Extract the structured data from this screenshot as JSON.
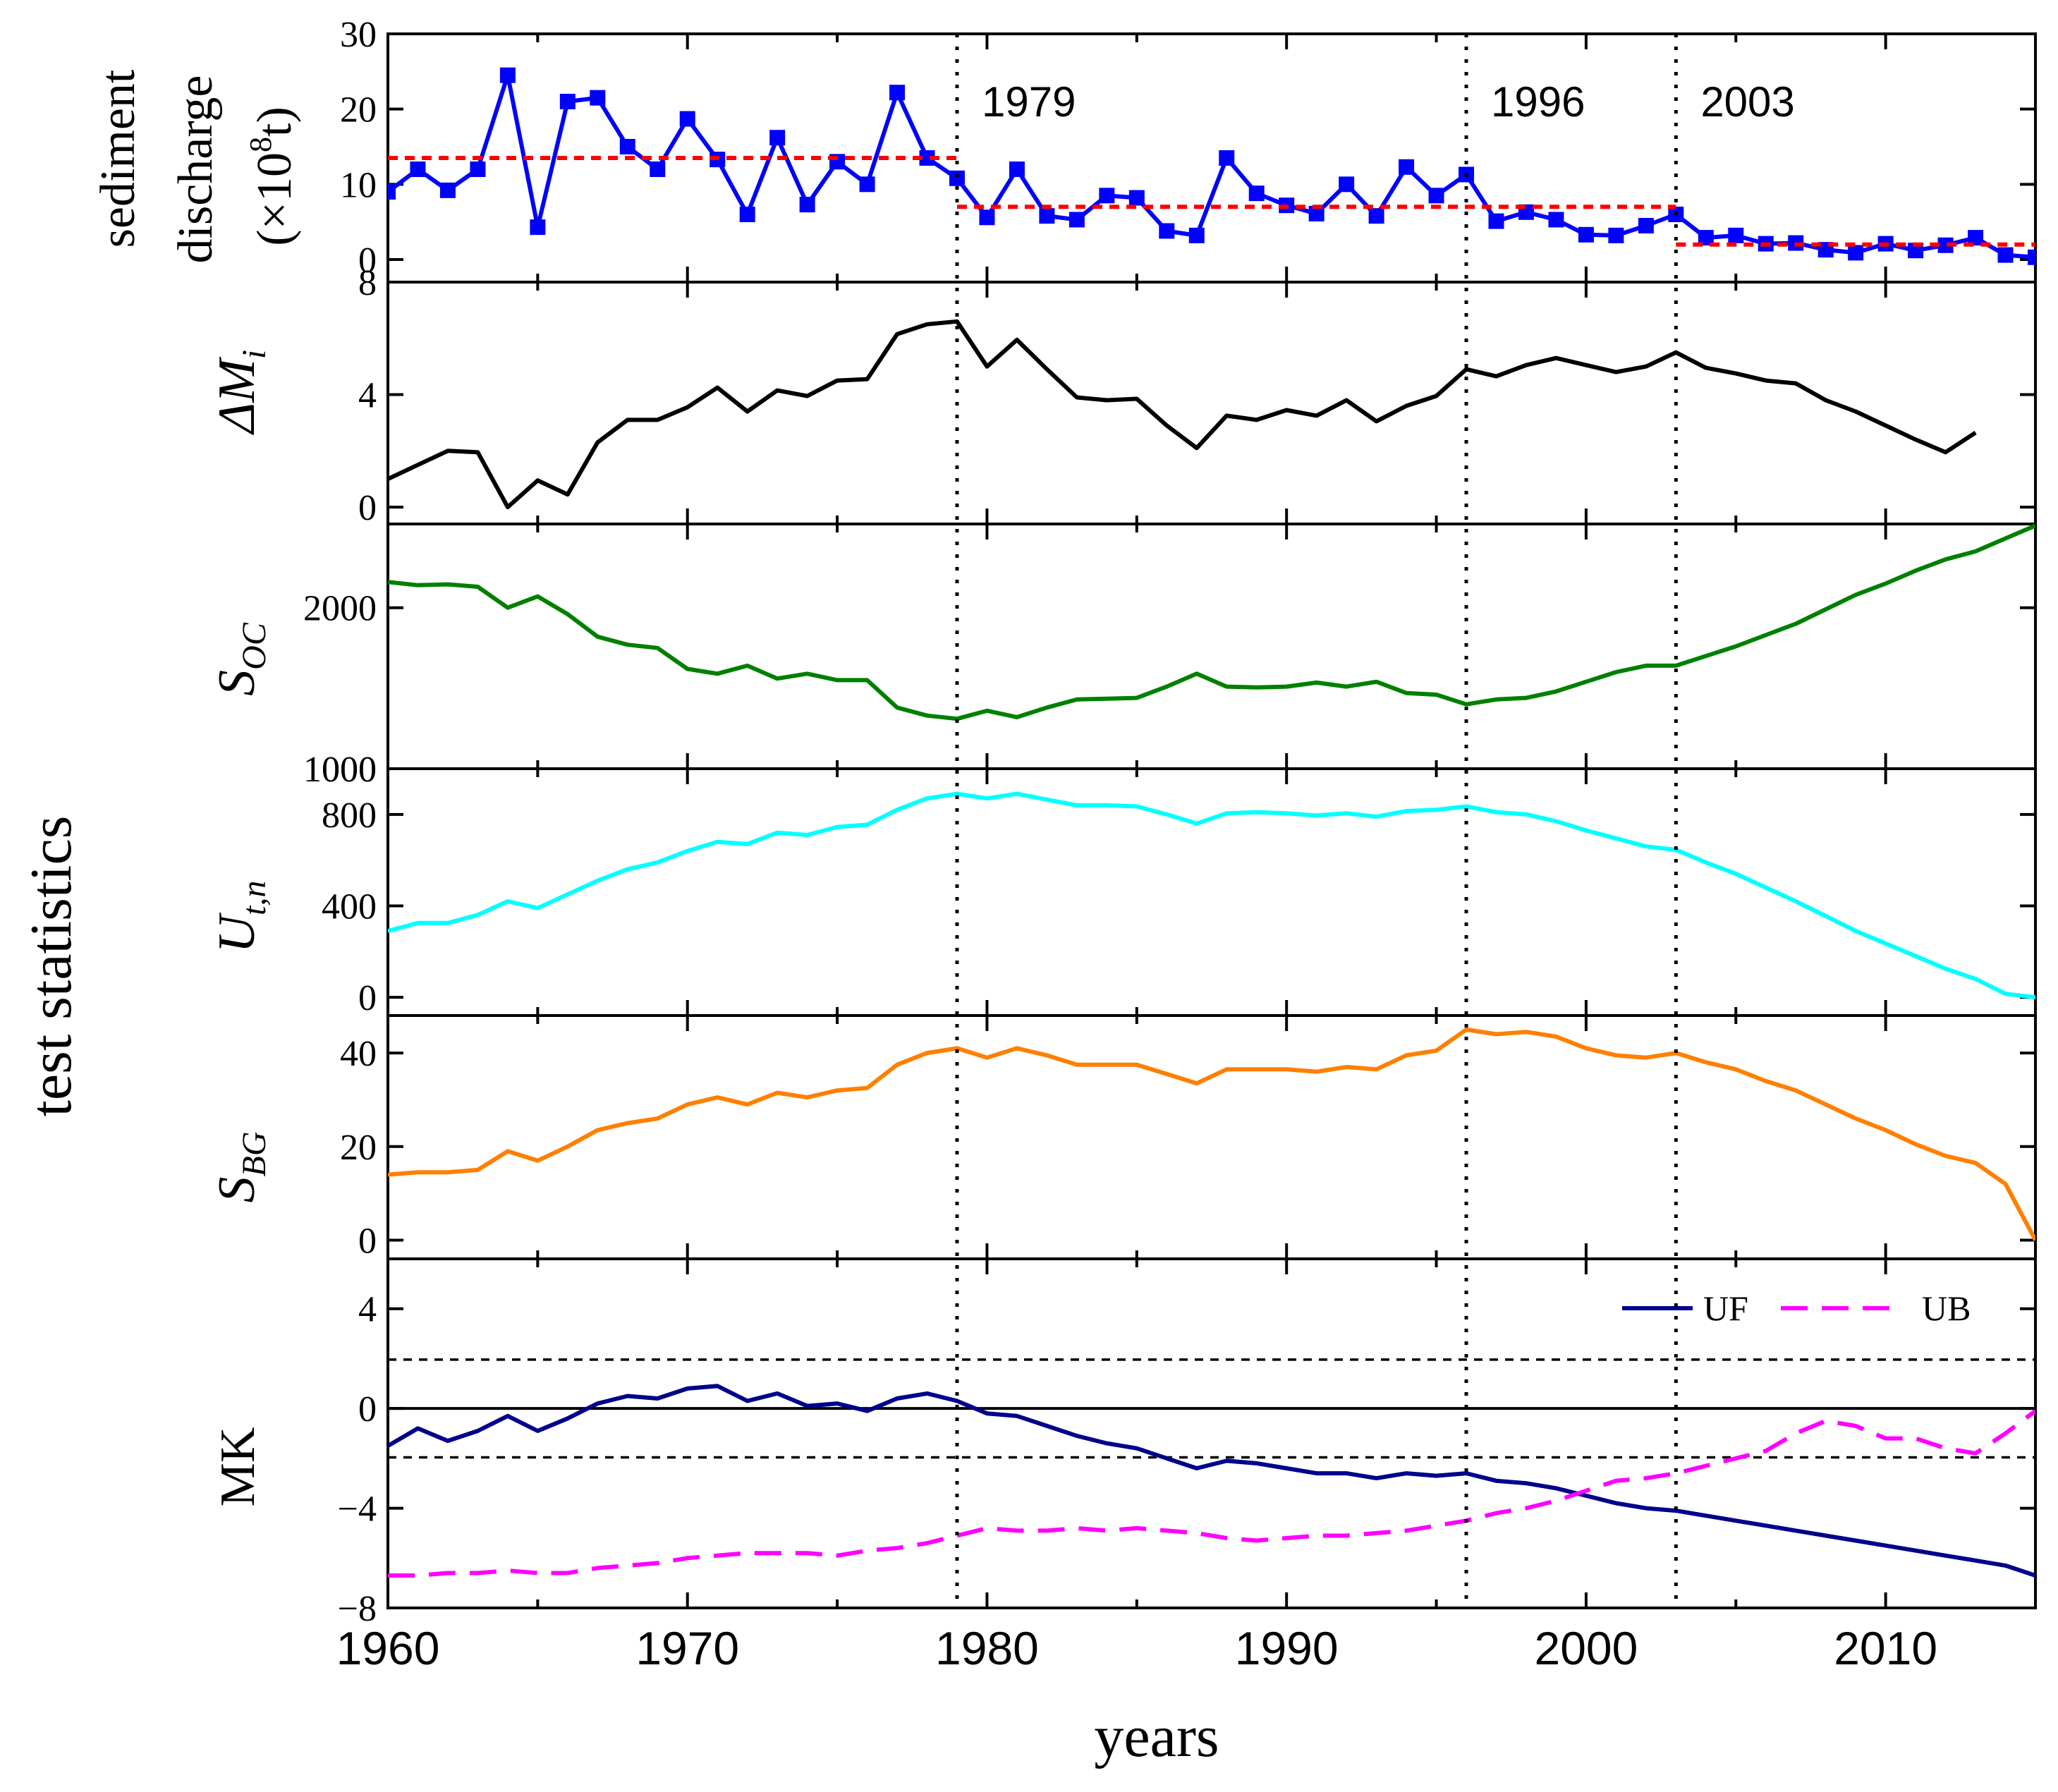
{
  "chart_data": {
    "type": "line",
    "x_label": "years",
    "shared_y_label": "test statistics",
    "x_range": [
      1960,
      2015
    ],
    "x_ticks": [
      1960,
      1970,
      1980,
      1990,
      2000,
      2010
    ],
    "change_points": [
      1979,
      1996,
      2003
    ],
    "change_point_labels": [
      "1979",
      "1996",
      "2003"
    ],
    "panels": [
      {
        "id": "sediment",
        "ylabel_line1": "sediment",
        "ylabel_line2": "discharge",
        "ylabel_line3_prefix": "(×10",
        "ylabel_line3_sup": "8",
        "ylabel_line3_suffix": "t)",
        "ylim": [
          -3,
          30
        ],
        "yticks": [
          0,
          10,
          20,
          30
        ],
        "series": [
          {
            "name": "sediment discharge",
            "color": "#0000ff",
            "marker": "square",
            "x": [
              1960,
              1961,
              1962,
              1963,
              1964,
              1965,
              1966,
              1967,
              1968,
              1969,
              1970,
              1971,
              1972,
              1973,
              1974,
              1975,
              1976,
              1977,
              1978,
              1979,
              1980,
              1981,
              1982,
              1983,
              1984,
              1985,
              1986,
              1987,
              1988,
              1989,
              1990,
              1991,
              1992,
              1993,
              1994,
              1995,
              1996,
              1997,
              1998,
              1999,
              2000,
              2001,
              2002,
              2003,
              2004,
              2005,
              2006,
              2007,
              2008,
              2009,
              2010,
              2011,
              2012,
              2013,
              2014,
              2015
            ],
            "values": [
              9,
              12,
              9.2,
              12,
              24.5,
              4.3,
              21,
              21.5,
              15,
              12,
              18.7,
              13.3,
              6,
              16.2,
              7.3,
              13,
              10,
              22.2,
              13.5,
              10.8,
              5.6,
              12,
              5.8,
              5.3,
              8.5,
              8.2,
              3.8,
              3.2,
              13.5,
              8.8,
              7.2,
              6.1,
              10,
              5.8,
              12.3,
              8.5,
              11.3,
              5.1,
              6.3,
              5.3,
              3.3,
              3.2,
              4.5,
              6,
              2.9,
              3.2,
              2.1,
              2.2,
              1.3,
              0.9,
              2.1,
              1.2,
              1.9,
              2.9,
              0.6,
              0.3
            ]
          },
          {
            "name": "mean 1960-1979",
            "color": "#ff0000",
            "style": "dashed",
            "x": [
              1960,
              1979
            ],
            "values": [
              13.5,
              13.5
            ]
          },
          {
            "name": "mean 1979-2003",
            "color": "#ff0000",
            "style": "dashed",
            "x": [
              1979,
              2003
            ],
            "values": [
              7,
              7
            ]
          },
          {
            "name": "mean 2003-2015",
            "color": "#ff0000",
            "style": "dashed",
            "x": [
              2003,
              2015
            ],
            "values": [
              2,
              2
            ]
          }
        ]
      },
      {
        "id": "deltaM",
        "ylabel_main": "ΔM",
        "ylabel_sub": "i",
        "ylim": [
          -0.6,
          8
        ],
        "yticks": [
          0,
          4,
          8
        ],
        "series": [
          {
            "name": "ΔMi",
            "color": "#000000",
            "x": [
              1960,
              1961,
              1962,
              1963,
              1964,
              1965,
              1966,
              1967,
              1968,
              1969,
              1970,
              1971,
              1972,
              1973,
              1974,
              1975,
              1976,
              1977,
              1978,
              1979,
              1980,
              1981,
              1982,
              1983,
              1984,
              1985,
              1986,
              1987,
              1988,
              1989,
              1990,
              1991,
              1992,
              1993,
              1994,
              1995,
              1996,
              1997,
              1998,
              1999,
              2000,
              2001,
              2002,
              2003,
              2004,
              2005,
              2006,
              2007,
              2008,
              2009,
              2010,
              2011,
              2012,
              2013
            ],
            "values": [
              1.0,
              1.5,
              2.0,
              1.95,
              0,
              0.95,
              0.45,
              2.3,
              3.1,
              3.1,
              3.55,
              4.25,
              3.4,
              4.15,
              3.95,
              4.5,
              4.55,
              6.15,
              6.5,
              6.6,
              5.0,
              5.95,
              4.9,
              3.9,
              3.8,
              3.85,
              2.9,
              2.1,
              3.25,
              3.1,
              3.45,
              3.25,
              3.8,
              3.05,
              3.6,
              3.95,
              4.9,
              4.65,
              5.05,
              5.3,
              5.05,
              4.8,
              5.0,
              5.5,
              4.95,
              4.75,
              4.5,
              4.4,
              3.8,
              3.4,
              2.9,
              2.4,
              1.95,
              2.65
            ]
          }
        ]
      },
      {
        "id": "soc",
        "ylabel_main": "S",
        "ylabel_sub": "OC",
        "ylim": [
          1000,
          2520
        ],
        "yticks": [
          1000,
          2000
        ],
        "series": [
          {
            "name": "SOC",
            "color": "#008000",
            "x": [
              1960,
              1961,
              1962,
              1963,
              1964,
              1965,
              1966,
              1967,
              1968,
              1969,
              1970,
              1971,
              1972,
              1973,
              1974,
              1975,
              1976,
              1977,
              1978,
              1979,
              1980,
              1981,
              1982,
              1983,
              1984,
              1985,
              1986,
              1987,
              1988,
              1989,
              1990,
              1991,
              1992,
              1993,
              1994,
              1995,
              1996,
              1997,
              1998,
              1999,
              2000,
              2001,
              2002,
              2003,
              2004,
              2005,
              2006,
              2007,
              2008,
              2009,
              2010,
              2011,
              2012,
              2013,
              2014,
              2015
            ],
            "values": [
              2160,
              2140,
              2145,
              2130,
              2000,
              2070,
              1960,
              1820,
              1770,
              1750,
              1620,
              1590,
              1640,
              1560,
              1590,
              1550,
              1550,
              1380,
              1330,
              1310,
              1360,
              1320,
              1380,
              1430,
              1435,
              1440,
              1510,
              1590,
              1510,
              1505,
              1510,
              1535,
              1510,
              1540,
              1470,
              1460,
              1400,
              1430,
              1440,
              1480,
              1540,
              1600,
              1640,
              1640,
              1700,
              1760,
              1830,
              1900,
              1990,
              2080,
              2150,
              2230,
              2300,
              2350,
              2430,
              2510
            ]
          }
        ]
      },
      {
        "id": "utn",
        "ylabel_main": "U",
        "ylabel_sub": "t,n",
        "ylim": [
          -80,
          1000
        ],
        "yticks": [
          0,
          400,
          800,
          1000
        ],
        "series": [
          {
            "name": "Ut,n",
            "color": "#00ffff",
            "x": [
              1960,
              1961,
              1962,
              1963,
              1964,
              1965,
              1966,
              1967,
              1968,
              1969,
              1970,
              1971,
              1972,
              1973,
              1974,
              1975,
              1976,
              1977,
              1978,
              1979,
              1980,
              1981,
              1982,
              1983,
              1984,
              1985,
              1986,
              1987,
              1988,
              1989,
              1990,
              1991,
              1992,
              1993,
              1994,
              1995,
              1996,
              1997,
              1998,
              1999,
              2000,
              2001,
              2002,
              2003,
              2004,
              2005,
              2006,
              2007,
              2008,
              2009,
              2010,
              2011,
              2012,
              2013,
              2014,
              2015
            ],
            "values": [
              290,
              325,
              325,
              360,
              420,
              390,
              450,
              510,
              560,
              590,
              640,
              680,
              670,
              720,
              710,
              745,
              755,
              820,
              870,
              890,
              870,
              890,
              865,
              840,
              840,
              835,
              800,
              760,
              805,
              810,
              805,
              795,
              805,
              790,
              815,
              820,
              835,
              810,
              800,
              770,
              730,
              695,
              660,
              645,
              590,
              540,
              480,
              420,
              355,
              290,
              235,
              180,
              125,
              80,
              15,
              0
            ]
          }
        ]
      },
      {
        "id": "sbg",
        "ylabel_main": "S",
        "ylabel_sub": "BG",
        "ylim": [
          -4,
          48
        ],
        "yticks": [
          0,
          20,
          40
        ],
        "series": [
          {
            "name": "SBG",
            "color": "#ff7f00",
            "x": [
              1960,
              1961,
              1962,
              1963,
              1964,
              1965,
              1966,
              1967,
              1968,
              1969,
              1970,
              1971,
              1972,
              1973,
              1974,
              1975,
              1976,
              1977,
              1978,
              1979,
              1980,
              1981,
              1982,
              1983,
              1984,
              1985,
              1986,
              1987,
              1988,
              1989,
              1990,
              1991,
              1992,
              1993,
              1994,
              1995,
              1996,
              1997,
              1998,
              1999,
              2000,
              2001,
              2002,
              2003,
              2004,
              2005,
              2006,
              2007,
              2008,
              2009,
              2010,
              2011,
              2012,
              2013,
              2014,
              2015
            ],
            "values": [
              14,
              14.5,
              14.5,
              15,
              19,
              17,
              20,
              23.5,
              25,
              26,
              29,
              30.5,
              29,
              31.5,
              30.5,
              32,
              32.5,
              37.5,
              40,
              41,
              39,
              41,
              39.5,
              37.5,
              37.5,
              37.5,
              35.5,
              33.5,
              36.5,
              36.5,
              36.5,
              36,
              37,
              36.5,
              39.5,
              40.5,
              45,
              44,
              44.5,
              43.5,
              41,
              39.5,
              39,
              40,
              38,
              36.5,
              34,
              32,
              29,
              26,
              23.5,
              20.5,
              18,
              16.5,
              12,
              0
            ]
          }
        ]
      },
      {
        "id": "mk",
        "ylabel_main": "MK",
        "ylim": [
          -8,
          6
        ],
        "yticks": [
          -8,
          -4,
          0,
          4
        ],
        "reference_lines": [
          1.96,
          0,
          -1.96
        ],
        "legend_position": "top-right",
        "series": [
          {
            "name": "UF",
            "color": "#00008b",
            "style": "solid",
            "x": [
              1960,
              1961,
              1962,
              1963,
              1964,
              1965,
              1966,
              1967,
              1968,
              1969,
              1970,
              1971,
              1972,
              1973,
              1974,
              1975,
              1976,
              1977,
              1978,
              1979,
              1980,
              1981,
              1982,
              1983,
              1984,
              1985,
              1986,
              1987,
              1988,
              1989,
              1990,
              1991,
              1992,
              1993,
              1994,
              1995,
              1996,
              1997,
              1998,
              1999,
              2000,
              2001,
              2002,
              2003,
              2004,
              2005,
              2006,
              2007,
              2008,
              2009,
              2010,
              2011,
              2012,
              2013,
              2014,
              2015
            ],
            "values": [
              -1.5,
              -0.8,
              -1.3,
              -0.9,
              -0.3,
              -0.9,
              -0.4,
              0.2,
              0.5,
              0.4,
              0.8,
              0.9,
              0.3,
              0.6,
              0.1,
              0.2,
              -0.1,
              0.4,
              0.6,
              0.3,
              -0.2,
              -0.3,
              -0.7,
              -1.1,
              -1.4,
              -1.6,
              -2.0,
              -2.4,
              -2.1,
              -2.2,
              -2.4,
              -2.6,
              -2.6,
              -2.8,
              -2.6,
              -2.7,
              -2.6,
              -2.9,
              -3.0,
              -3.2,
              -3.5,
              -3.8,
              -4.0,
              -4.1,
              -4.3,
              -4.5,
              -4.7,
              -4.9,
              -5.1,
              -5.3,
              -5.5,
              -5.7,
              -5.9,
              -6.1,
              -6.3,
              -6.7
            ]
          },
          {
            "name": "UB",
            "color": "#ff00ff",
            "style": "dashed",
            "x": [
              1960,
              1961,
              1962,
              1963,
              1964,
              1965,
              1966,
              1967,
              1968,
              1969,
              1970,
              1971,
              1972,
              1973,
              1974,
              1975,
              1976,
              1977,
              1978,
              1979,
              1980,
              1981,
              1982,
              1983,
              1984,
              1985,
              1986,
              1987,
              1988,
              1989,
              1990,
              1991,
              1992,
              1993,
              1994,
              1995,
              1996,
              1997,
              1998,
              1999,
              2000,
              2001,
              2002,
              2003,
              2004,
              2005,
              2006,
              2007,
              2008,
              2009,
              2010,
              2011,
              2012,
              2013,
              2014,
              2015
            ],
            "values": [
              -6.7,
              -6.7,
              -6.6,
              -6.6,
              -6.5,
              -6.6,
              -6.6,
              -6.4,
              -6.3,
              -6.2,
              -6.0,
              -5.9,
              -5.8,
              -5.8,
              -5.8,
              -5.9,
              -5.7,
              -5.6,
              -5.4,
              -5.1,
              -4.8,
              -4.9,
              -4.9,
              -4.8,
              -4.9,
              -4.8,
              -4.9,
              -5.0,
              -5.2,
              -5.3,
              -5.2,
              -5.1,
              -5.1,
              -5.0,
              -4.9,
              -4.7,
              -4.5,
              -4.2,
              -4.0,
              -3.7,
              -3.3,
              -2.9,
              -2.8,
              -2.6,
              -2.3,
              -2.0,
              -1.7,
              -1.0,
              -0.5,
              -0.7,
              -1.2,
              -1.2,
              -1.6,
              -1.8,
              -1.0,
              -0.1
            ]
          }
        ]
      }
    ]
  }
}
